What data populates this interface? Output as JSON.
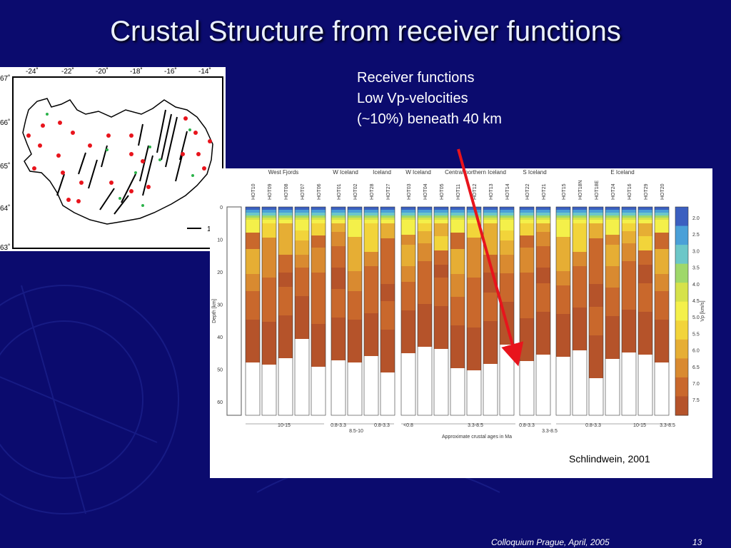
{
  "slide": {
    "title": "Crustal Structure from receiver functions",
    "bullets": [
      "Receiver functions",
      "Low Vp-velocities",
      "(~10%) beneath  40 km"
    ],
    "credit": "Schlindwein, 2001",
    "footer_left": "Colloquium Prague, April, 2005",
    "page_number": "13"
  },
  "map": {
    "lon_labels": [
      "-24˚",
      "-22˚",
      "-20˚",
      "-18˚",
      "-16˚",
      "-14˚"
    ],
    "lat_labels": [
      "67˚",
      "66˚",
      "65˚",
      "64˚",
      "63˚"
    ],
    "scale_label": "1"
  },
  "figure": {
    "regions": [
      "West Fjords",
      "W Iceland",
      "Iceland",
      "W Iceland",
      "Central northern Iceland",
      "S Iceland",
      "E Iceland"
    ],
    "stations": [
      "HOT10",
      "HOT09",
      "HOT08",
      "HOT07",
      "HOT06",
      "HOT01",
      "HOT02",
      "HOT28",
      "HOT27",
      "HOT03",
      "HOT04",
      "HOT05",
      "HOT11",
      "HOT12",
      "HOT13",
      "HOT14",
      "HOT22",
      "HOT21",
      "HOT15",
      "HOT18N",
      "HOT18E",
      "HOT24",
      "HOT16",
      "HOT29",
      "HOT20"
    ],
    "depth_label": "Depth [km]",
    "depth_ticks": [
      "0",
      "10",
      "20",
      "30",
      "40",
      "50",
      "60"
    ],
    "vp_label": "Vp [km/s]",
    "vp_ticks": [
      "2.0",
      "2.5",
      "3.0",
      "3.5",
      "4.0",
      "4.5",
      "5.0",
      "5.5",
      "6.0",
      "6.5",
      "7.0",
      "7.5"
    ],
    "age_ranges": [
      "10-15",
      "0.8-3.3",
      "8.5-10",
      "0.8-3.3",
      "<0.8",
      "3.3-8.5",
      "0.8-3.3",
      "3.3-8.5",
      "0.8-3.3",
      "10-15",
      "3.3-8.5"
    ],
    "age_axis_label": "Approximate crustal ages in Ma"
  },
  "colors": {
    "background": "#0b0b6e",
    "arrow": "#e8141c"
  }
}
